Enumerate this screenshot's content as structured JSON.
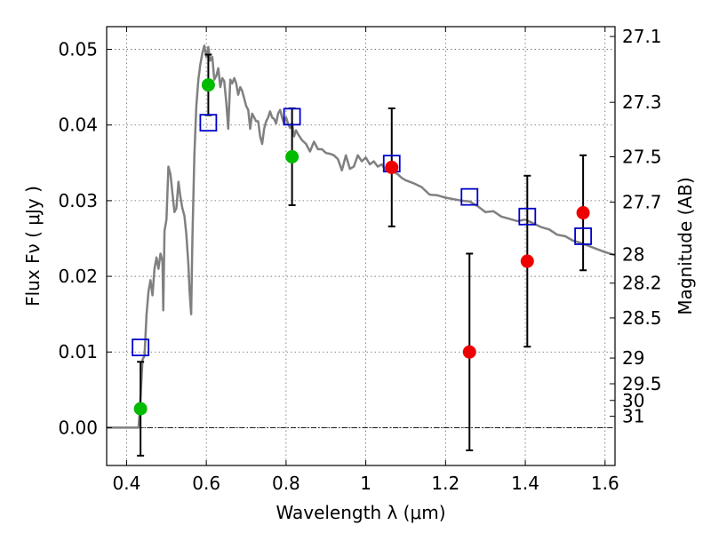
{
  "chart_data": {
    "type": "scatter",
    "title": "",
    "xlabel": "Wavelength  λ (μm)",
    "ylabel": "Flux  Fν  ( μJy )",
    "y2label": "Magnitude (AB)",
    "xlim": [
      0.35,
      1.625
    ],
    "ylim": [
      -0.005,
      0.053
    ],
    "x_ticks": [
      0.4,
      0.6,
      0.8,
      1.0,
      1.2,
      1.4,
      1.6
    ],
    "x_tick_labels": [
      "0.4",
      "0.6",
      "0.8",
      "1",
      "1.2",
      "1.4",
      "1.6"
    ],
    "y_ticks": [
      0.0,
      0.01,
      0.02,
      0.03,
      0.04,
      0.05
    ],
    "y_tick_labels": [
      "0.00",
      "0.01",
      "0.02",
      "0.03",
      "0.04",
      "0.05"
    ],
    "y2_ticks": [
      {
        "label": "27.1",
        "flux": 0.0517
      },
      {
        "label": "27.3",
        "flux": 0.043
      },
      {
        "label": "27.5",
        "flux": 0.0358
      },
      {
        "label": "27.7",
        "flux": 0.0298
      },
      {
        "label": "28",
        "flux": 0.0229
      },
      {
        "label": "28.2",
        "flux": 0.0191
      },
      {
        "label": "28.5",
        "flux": 0.0145
      },
      {
        "label": "29",
        "flux": 0.0092
      },
      {
        "label": "29.5",
        "flux": 0.0058
      },
      {
        "label": "30",
        "flux": 0.0036
      },
      {
        "label": "31",
        "flux": 0.0015
      }
    ],
    "grid": true,
    "zero_line": true,
    "series": [
      {
        "name": "model_spectrum",
        "kind": "line",
        "color": "#808080",
        "points": [
          [
            0.35,
            0.0
          ],
          [
            0.43,
            0.0
          ],
          [
            0.435,
            0.004
          ],
          [
            0.44,
            0.009
          ],
          [
            0.445,
            0.0095
          ],
          [
            0.45,
            0.015
          ],
          [
            0.455,
            0.018
          ],
          [
            0.46,
            0.0195
          ],
          [
            0.465,
            0.0175
          ],
          [
            0.47,
            0.021
          ],
          [
            0.475,
            0.0225
          ],
          [
            0.48,
            0.021
          ],
          [
            0.485,
            0.023
          ],
          [
            0.49,
            0.022
          ],
          [
            0.492,
            0.0155
          ],
          [
            0.495,
            0.026
          ],
          [
            0.5,
            0.0275
          ],
          [
            0.505,
            0.0345
          ],
          [
            0.51,
            0.0335
          ],
          [
            0.515,
            0.031
          ],
          [
            0.52,
            0.0285
          ],
          [
            0.525,
            0.029
          ],
          [
            0.53,
            0.0325
          ],
          [
            0.535,
            0.0305
          ],
          [
            0.54,
            0.029
          ],
          [
            0.545,
            0.028
          ],
          [
            0.55,
            0.0255
          ],
          [
            0.555,
            0.0215
          ],
          [
            0.558,
            0.018
          ],
          [
            0.562,
            0.015
          ],
          [
            0.565,
            0.025
          ],
          [
            0.57,
            0.036
          ],
          [
            0.575,
            0.0425
          ],
          [
            0.58,
            0.046
          ],
          [
            0.585,
            0.048
          ],
          [
            0.59,
            0.0495
          ],
          [
            0.595,
            0.0505
          ],
          [
            0.6,
            0.049
          ],
          [
            0.605,
            0.0503
          ],
          [
            0.61,
            0.0485
          ],
          [
            0.615,
            0.049
          ],
          [
            0.62,
            0.046
          ],
          [
            0.625,
            0.0465
          ],
          [
            0.63,
            0.0475
          ],
          [
            0.635,
            0.045
          ],
          [
            0.64,
            0.0462
          ],
          [
            0.645,
            0.0458
          ],
          [
            0.65,
            0.043
          ],
          [
            0.655,
            0.0395
          ],
          [
            0.66,
            0.046
          ],
          [
            0.665,
            0.0455
          ],
          [
            0.67,
            0.0462
          ],
          [
            0.675,
            0.0455
          ],
          [
            0.68,
            0.044
          ],
          [
            0.685,
            0.045
          ],
          [
            0.69,
            0.0445
          ],
          [
            0.695,
            0.0435
          ],
          [
            0.7,
            0.0425
          ],
          [
            0.705,
            0.042
          ],
          [
            0.71,
            0.0395
          ],
          [
            0.715,
            0.0415
          ],
          [
            0.72,
            0.041
          ],
          [
            0.725,
            0.0405
          ],
          [
            0.73,
            0.0405
          ],
          [
            0.735,
            0.0385
          ],
          [
            0.74,
            0.0375
          ],
          [
            0.745,
            0.0395
          ],
          [
            0.75,
            0.0405
          ],
          [
            0.755,
            0.041
          ],
          [
            0.76,
            0.0418
          ],
          [
            0.765,
            0.041
          ],
          [
            0.77,
            0.0408
          ],
          [
            0.775,
            0.0402
          ],
          [
            0.78,
            0.0415
          ],
          [
            0.785,
            0.042
          ],
          [
            0.79,
            0.041
          ],
          [
            0.795,
            0.0402
          ],
          [
            0.8,
            0.041
          ],
          [
            0.805,
            0.0402
          ],
          [
            0.81,
            0.0396
          ],
          [
            0.815,
            0.0403
          ],
          [
            0.82,
            0.0385
          ],
          [
            0.825,
            0.0393
          ],
          [
            0.83,
            0.0388
          ],
          [
            0.84,
            0.038
          ],
          [
            0.85,
            0.0375
          ],
          [
            0.86,
            0.0365
          ],
          [
            0.87,
            0.0378
          ],
          [
            0.88,
            0.0368
          ],
          [
            0.89,
            0.0368
          ],
          [
            0.9,
            0.0363
          ],
          [
            0.91,
            0.0362
          ],
          [
            0.92,
            0.036
          ],
          [
            0.93,
            0.0355
          ],
          [
            0.94,
            0.034
          ],
          [
            0.95,
            0.036
          ],
          [
            0.96,
            0.0342
          ],
          [
            0.97,
            0.0345
          ],
          [
            0.98,
            0.036
          ],
          [
            0.99,
            0.0352
          ],
          [
            1.0,
            0.0357
          ],
          [
            1.01,
            0.0348
          ],
          [
            1.02,
            0.0352
          ],
          [
            1.03,
            0.0345
          ],
          [
            1.04,
            0.0348
          ],
          [
            1.05,
            0.034
          ],
          [
            1.06,
            0.0343
          ],
          [
            1.07,
            0.0338
          ],
          [
            1.08,
            0.0335
          ],
          [
            1.09,
            0.033
          ],
          [
            1.1,
            0.0327
          ],
          [
            1.12,
            0.0323
          ],
          [
            1.14,
            0.0318
          ],
          [
            1.16,
            0.0308
          ],
          [
            1.18,
            0.0307
          ],
          [
            1.2,
            0.0304
          ],
          [
            1.22,
            0.0302
          ],
          [
            1.24,
            0.03
          ],
          [
            1.26,
            0.0299
          ],
          [
            1.28,
            0.0293
          ],
          [
            1.3,
            0.0285
          ],
          [
            1.32,
            0.0286
          ],
          [
            1.34,
            0.0279
          ],
          [
            1.36,
            0.0276
          ],
          [
            1.38,
            0.0273
          ],
          [
            1.4,
            0.0275
          ],
          [
            1.42,
            0.027
          ],
          [
            1.44,
            0.0265
          ],
          [
            1.46,
            0.0262
          ],
          [
            1.48,
            0.0255
          ],
          [
            1.5,
            0.0253
          ],
          [
            1.52,
            0.0247
          ],
          [
            1.54,
            0.0244
          ],
          [
            1.56,
            0.024
          ],
          [
            1.58,
            0.0236
          ],
          [
            1.6,
            0.0232
          ],
          [
            1.625,
            0.0228
          ]
        ]
      },
      {
        "name": "model_photometry",
        "kind": "open_squares",
        "color": "#0000cc",
        "points": [
          [
            0.435,
            0.0106
          ],
          [
            0.605,
            0.0403
          ],
          [
            0.815,
            0.0411
          ],
          [
            1.065,
            0.0349
          ],
          [
            1.26,
            0.0305
          ],
          [
            1.405,
            0.0279
          ],
          [
            1.545,
            0.0253
          ]
        ]
      },
      {
        "name": "observed_green",
        "kind": "filled_circles",
        "color": "#00bb00",
        "points": [
          {
            "x": 0.435,
            "y": 0.0025,
            "err": 0.0062
          },
          {
            "x": 0.605,
            "y": 0.0453,
            "err": 0.004
          },
          {
            "x": 0.815,
            "y": 0.0358,
            "err": 0.0064
          }
        ]
      },
      {
        "name": "observed_red",
        "kind": "filled_circles",
        "color": "#ee0000",
        "points": [
          {
            "x": 1.065,
            "y": 0.0344,
            "err": 0.0078
          },
          {
            "x": 1.26,
            "y": 0.01,
            "err": 0.013
          },
          {
            "x": 1.405,
            "y": 0.022,
            "err": 0.0113
          },
          {
            "x": 1.545,
            "y": 0.0284,
            "err": 0.0076
          }
        ]
      }
    ]
  }
}
